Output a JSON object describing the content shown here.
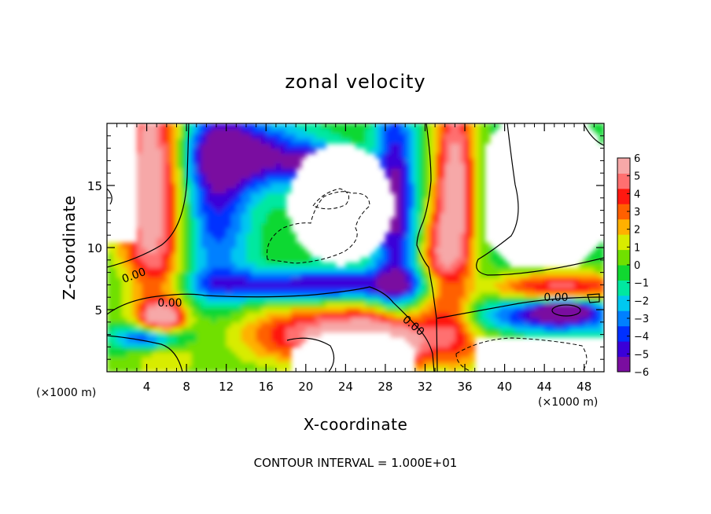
{
  "chart_data": {
    "type": "heatmap",
    "title": "zonal velocity",
    "xlabel": "X-coordinate",
    "ylabel": "Z-coordinate",
    "x_unit": "(×1000 m)",
    "x_unit_right": "(×1000 m)",
    "xlim": [
      0,
      50
    ],
    "ylim": [
      0,
      20
    ],
    "x_ticks": [
      4,
      8,
      12,
      16,
      20,
      24,
      28,
      32,
      36,
      40,
      44,
      48
    ],
    "y_ticks": [
      5,
      10,
      15
    ],
    "colorbar": {
      "ticks": [
        6,
        5,
        4,
        3,
        2,
        1,
        0,
        -1,
        -2,
        -3,
        -4,
        -5,
        -6
      ],
      "range": [
        -6,
        6
      ],
      "colors": [
        "#7a0da0",
        "#3a00d8",
        "#0030ff",
        "#0080ff",
        "#00c8f0",
        "#00e8a0",
        "#10d830",
        "#70e000",
        "#d8ec00",
        "#ffb000",
        "#ff6000",
        "#ff1810",
        "#ff7070",
        "#f6a8a8"
      ]
    },
    "contour_labels": [
      "0.00",
      "0.00",
      "0.00",
      "0.00"
    ],
    "footer": "CONTOUR INTERVAL = 1.000E+01"
  }
}
